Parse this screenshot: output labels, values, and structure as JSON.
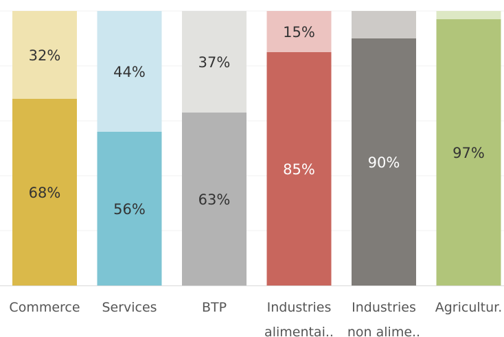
{
  "chart_data": {
    "type": "stacked_bar",
    "categories": [
      "Commerce",
      "Services",
      "BTP",
      "Industries alimentai..",
      "Industries non alime..",
      "Agricultur."
    ],
    "series": [
      {
        "colors": [
          "#dab94a",
          "#7dc4d3",
          "#b3b3b3",
          "#c8665d",
          "#7f7c78",
          "#b1c57a"
        ],
        "values": [
          68,
          56,
          63,
          85,
          90,
          97
        ],
        "value_labels": [
          "68%",
          "56%",
          "63%",
          "85%",
          "90%",
          "97%"
        ]
      },
      {
        "colors": [
          "#f0e3b0",
          "#cce6ef",
          "#e2e2df",
          "#ecc3c0",
          "#cdcac7",
          "#dde8c4"
        ],
        "values": [
          32,
          44,
          37,
          15,
          10,
          3
        ],
        "value_labels": [
          "32%",
          "44%",
          "37%",
          "15%",
          null,
          null
        ]
      }
    ],
    "ylim": [
      0,
      100
    ],
    "yticks": [
      0,
      20,
      40,
      60,
      80,
      100
    ],
    "grid": true
  }
}
